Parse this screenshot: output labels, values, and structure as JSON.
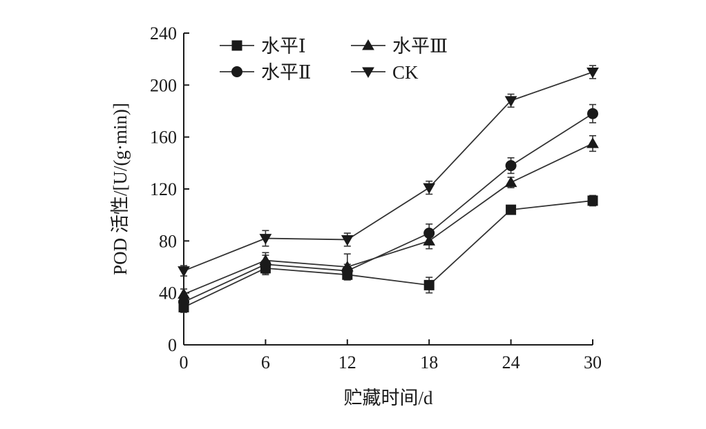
{
  "chart_data": {
    "type": "line",
    "title": "",
    "xlabel": "贮藏时间/d",
    "ylabel": "POD 活性/[U/(g·min)]",
    "x": [
      0,
      6,
      12,
      18,
      24,
      30
    ],
    "xlim": [
      0,
      30
    ],
    "ylim": [
      0,
      240
    ],
    "xticks": [
      0,
      6,
      12,
      18,
      24,
      30
    ],
    "yticks": [
      0,
      40,
      80,
      120,
      160,
      200,
      240
    ],
    "grid": false,
    "legend_position": "top-left",
    "series": [
      {
        "name": "水平Ⅰ",
        "marker": "square",
        "values": [
          29,
          59,
          54,
          46,
          104,
          111
        ],
        "errors": [
          4,
          5,
          4,
          6,
          3,
          4
        ]
      },
      {
        "name": "水平Ⅱ",
        "marker": "circle",
        "values": [
          33,
          62,
          57,
          86,
          138,
          178
        ],
        "errors": [
          4,
          7,
          5,
          7,
          6,
          7
        ]
      },
      {
        "name": "水平Ⅲ",
        "marker": "triangle-up",
        "values": [
          39,
          65,
          60,
          80,
          125,
          155
        ],
        "errors": [
          4,
          6,
          10,
          6,
          4,
          6
        ]
      },
      {
        "name": "CK",
        "marker": "triangle-down",
        "values": [
          57,
          82,
          81,
          121,
          188,
          210
        ],
        "errors": [
          4,
          6,
          5,
          5,
          5,
          5
        ]
      }
    ]
  }
}
